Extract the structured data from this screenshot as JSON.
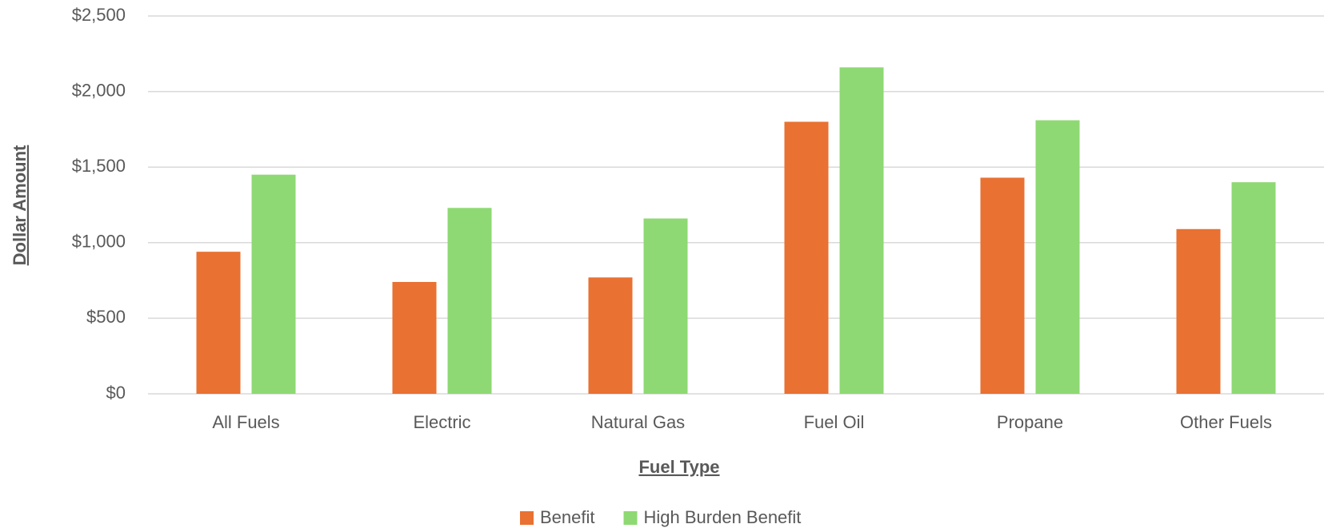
{
  "chart_data": {
    "type": "bar",
    "x_label": "Fuel Type",
    "y_label": "Dollar Amount",
    "categories": [
      "All Fuels",
      "Electric",
      "Natural Gas",
      "Fuel Oil",
      "Propane",
      "Other Fuels"
    ],
    "series": [
      {
        "name": "Benefit",
        "color": "#E97132",
        "values": [
          940,
          740,
          770,
          1800,
          1430,
          1090
        ]
      },
      {
        "name": "High Burden Benefit",
        "color": "#8ED973",
        "values": [
          1450,
          1230,
          1160,
          2160,
          1810,
          1400
        ]
      }
    ],
    "ylim": [
      0,
      2500
    ],
    "yticks": [
      {
        "value": 0,
        "label": "$0"
      },
      {
        "value": 500,
        "label": "$500"
      },
      {
        "value": 1000,
        "label": "$1,000"
      },
      {
        "value": 1500,
        "label": "$1,500"
      },
      {
        "value": 2000,
        "label": "$2,000"
      },
      {
        "value": 2500,
        "label": "$2,500"
      }
    ],
    "grid": true,
    "legend": "bottom"
  }
}
